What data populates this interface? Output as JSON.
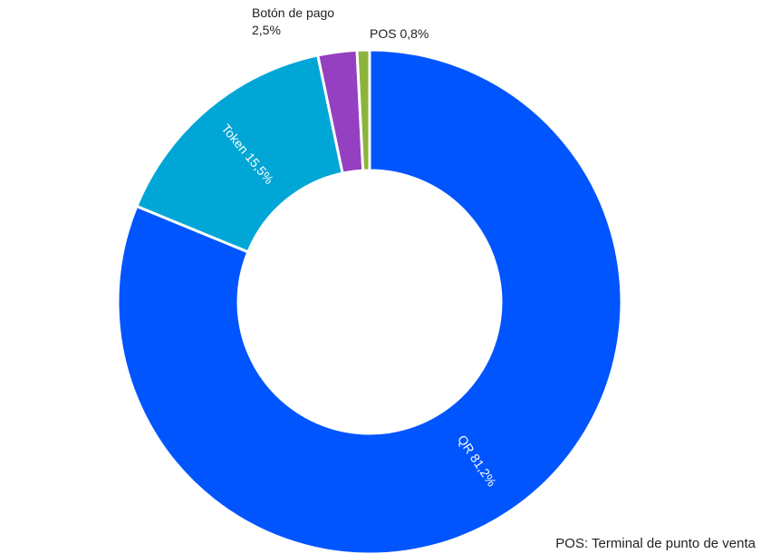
{
  "chart_data": {
    "type": "donut",
    "categories": [
      "QR",
      "Token",
      "Botón de pago",
      "POS"
    ],
    "values": [
      81.2,
      15.5,
      2.5,
      0.8
    ],
    "value_labels": [
      "81,2%",
      "15,5%",
      "2,5%",
      "0,8%"
    ],
    "colors": [
      "#0055ff",
      "#00a6d6",
      "#9440c0",
      "#8cb43c"
    ],
    "note": "POS: Terminal de punto de venta"
  }
}
